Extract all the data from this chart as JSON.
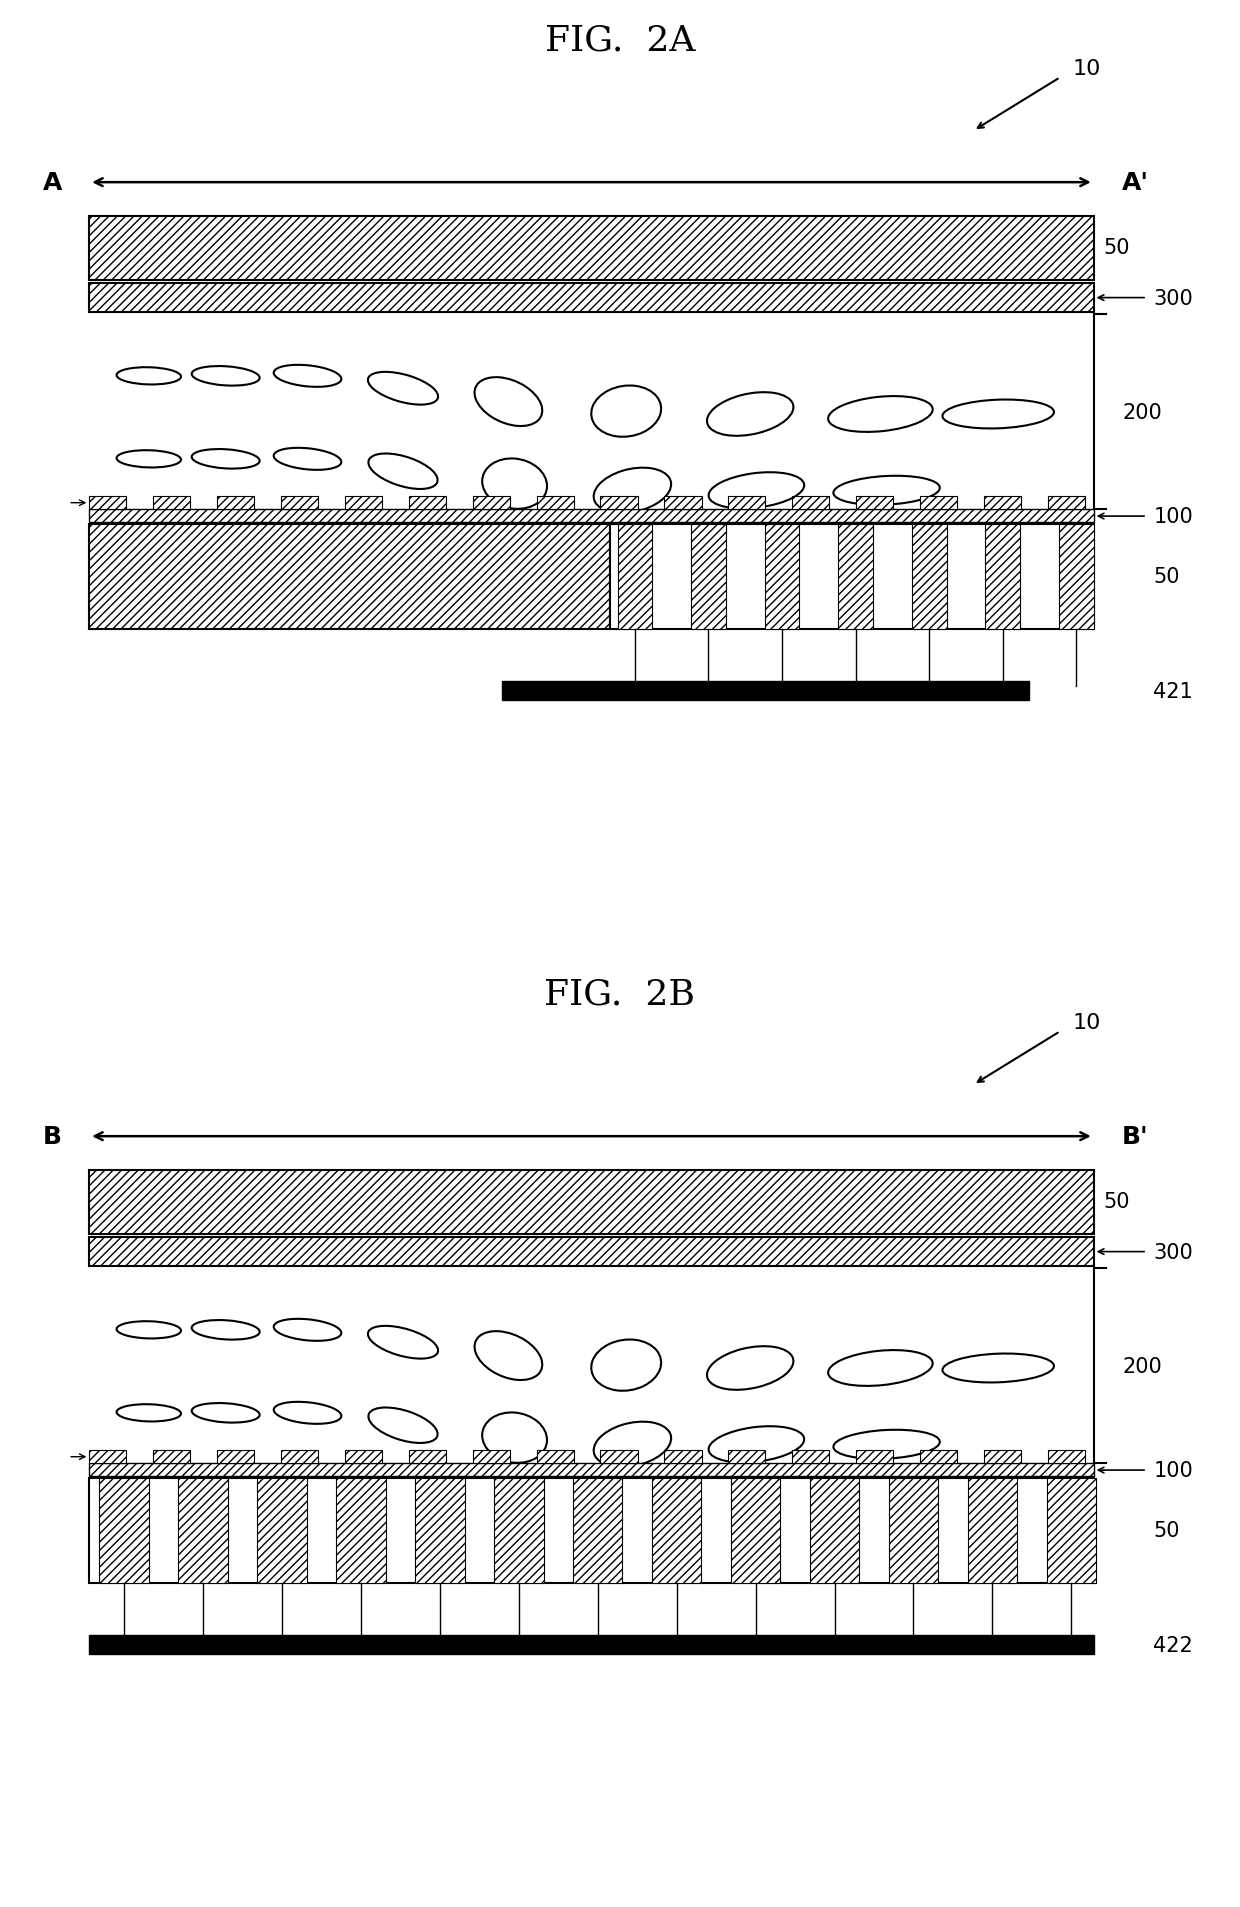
{
  "fig_title_a": "FIG.  2A",
  "fig_title_b": "FIG.  2B",
  "bg_color": "#ffffff",
  "label_fontsize": 16,
  "title_fontsize": 26,
  "fig2a": {
    "label_left": "A",
    "label_right": "A'",
    "ref_label": "10",
    "bottom_label": "421"
  },
  "fig2b": {
    "label_left": "B",
    "label_right": "B'",
    "ref_label": "10",
    "bottom_label": "422"
  },
  "lc_top_row_a": [
    [
      1.2,
      6.05,
      0.18,
      0.52,
      88
    ],
    [
      1.82,
      6.05,
      0.2,
      0.55,
      85
    ],
    [
      2.48,
      6.05,
      0.22,
      0.55,
      82
    ],
    [
      3.25,
      5.92,
      0.28,
      0.6,
      68
    ],
    [
      4.1,
      5.78,
      0.42,
      0.62,
      50
    ],
    [
      5.05,
      5.68,
      0.58,
      0.52,
      32
    ],
    [
      6.05,
      5.65,
      0.72,
      0.42,
      18
    ],
    [
      7.1,
      5.65,
      0.85,
      0.36,
      8
    ],
    [
      8.05,
      5.65,
      0.9,
      0.3,
      3
    ]
  ],
  "lc_bot_row_a": [
    [
      1.2,
      5.18,
      0.18,
      0.52,
      88
    ],
    [
      1.82,
      5.18,
      0.2,
      0.55,
      85
    ],
    [
      2.48,
      5.18,
      0.22,
      0.55,
      82
    ],
    [
      3.25,
      5.05,
      0.3,
      0.6,
      65
    ],
    [
      4.15,
      4.92,
      0.5,
      0.55,
      42
    ],
    [
      5.1,
      4.85,
      0.65,
      0.44,
      22
    ],
    [
      6.1,
      4.85,
      0.78,
      0.36,
      10
    ],
    [
      7.15,
      4.85,
      0.86,
      0.3,
      4
    ]
  ],
  "lc_top_row_b": [
    [
      1.2,
      6.05,
      0.18,
      0.52,
      88
    ],
    [
      1.82,
      6.05,
      0.2,
      0.55,
      85
    ],
    [
      2.48,
      6.05,
      0.22,
      0.55,
      82
    ],
    [
      3.25,
      5.92,
      0.28,
      0.6,
      68
    ],
    [
      4.1,
      5.78,
      0.42,
      0.62,
      50
    ],
    [
      5.05,
      5.68,
      0.58,
      0.52,
      32
    ],
    [
      6.05,
      5.65,
      0.72,
      0.42,
      18
    ],
    [
      7.1,
      5.65,
      0.85,
      0.36,
      8
    ],
    [
      8.05,
      5.65,
      0.9,
      0.3,
      3
    ]
  ],
  "lc_bot_row_b": [
    [
      1.2,
      5.18,
      0.18,
      0.52,
      88
    ],
    [
      1.82,
      5.18,
      0.2,
      0.55,
      85
    ],
    [
      2.48,
      5.18,
      0.22,
      0.55,
      82
    ],
    [
      3.25,
      5.05,
      0.3,
      0.6,
      65
    ],
    [
      4.15,
      4.92,
      0.5,
      0.55,
      42
    ],
    [
      5.1,
      4.85,
      0.65,
      0.44,
      22
    ],
    [
      6.1,
      4.85,
      0.78,
      0.36,
      10
    ],
    [
      7.15,
      4.85,
      0.86,
      0.3,
      4
    ]
  ]
}
